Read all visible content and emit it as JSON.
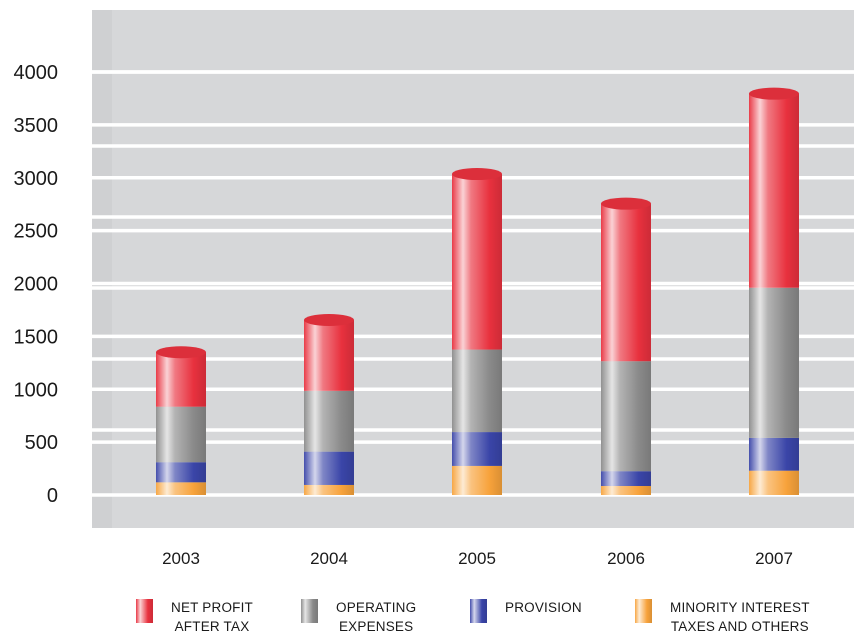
{
  "chart_data": {
    "type": "bar",
    "stacked": true,
    "categories": [
      "2003",
      "2004",
      "2005",
      "2006",
      "2007"
    ],
    "series": [
      {
        "name": "MINORITY INTEREST TAXES AND OTHERS",
        "label_lines": [
          "MINORITY INTEREST",
          "TAXES AND OTHERS"
        ],
        "color": "#f7a23b",
        "values": [
          120,
          95,
          275,
          85,
          230
        ]
      },
      {
        "name": "PROVISION",
        "label_lines": [
          "PROVISION"
        ],
        "color": "#3a45a8",
        "values": [
          190,
          315,
          320,
          140,
          310
        ]
      },
      {
        "name": "OPERATING EXPENSES",
        "label_lines": [
          "OPERATING",
          "EXPENSES"
        ],
        "color": "#8a8a8a",
        "values": [
          525,
          575,
          780,
          1040,
          1420
        ]
      },
      {
        "name": "NET PROFIT AFTER TAX",
        "label_lines": [
          "NET PROFIT",
          "AFTER TAX"
        ],
        "color": "#e8313e",
        "values": [
          515,
          670,
          1660,
          1490,
          1835
        ]
      }
    ],
    "legend_order": [
      3,
      2,
      1,
      0
    ],
    "yticks": [
      0,
      500,
      1000,
      1500,
      2000,
      2500,
      3000,
      3500,
      4000
    ],
    "ylim": [
      0,
      4000
    ],
    "grid": true,
    "legend": "bottom",
    "title": "",
    "xlabel": "",
    "ylabel": ""
  }
}
